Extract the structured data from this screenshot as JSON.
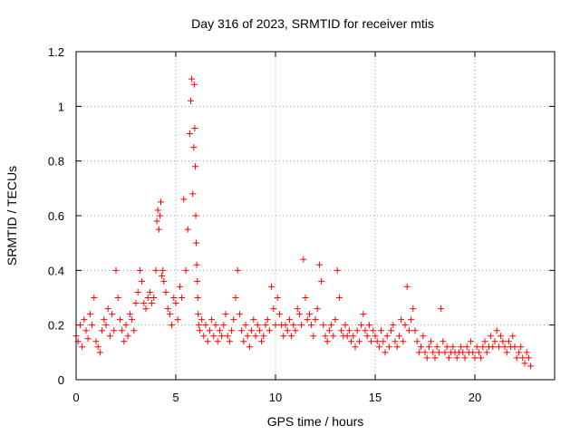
{
  "chart_data": {
    "type": "scatter",
    "title": "Day 316 of 2023, SRMTID for receiver mtis",
    "xlabel": "GPS time / hours",
    "ylabel": "SRMTID / TECUs",
    "xlim": [
      0,
      24
    ],
    "ylim": [
      0,
      1.2
    ],
    "xticks": [
      0,
      5,
      10,
      15,
      20
    ],
    "xtick_labels": [
      "0",
      "5",
      "10",
      "15",
      "20"
    ],
    "yticks": [
      0,
      0.2,
      0.4,
      0.6,
      0.8,
      1.0,
      1.2
    ],
    "ytick_labels": [
      "0",
      "0.2",
      "0.4",
      "0.6",
      "0.8",
      "1",
      "1.2"
    ],
    "grid": true,
    "marker": "+",
    "series_color": "#ff0000",
    "series": [
      {
        "name": "SRMTID",
        "x": [
          0.0,
          0.1,
          0.2,
          0.3,
          0.4,
          0.5,
          0.6,
          0.7,
          0.8,
          0.9,
          1.0,
          1.1,
          1.2,
          1.3,
          1.4,
          1.5,
          1.6,
          1.7,
          1.8,
          1.9,
          2.0,
          2.1,
          2.2,
          2.3,
          2.4,
          2.5,
          2.6,
          2.7,
          2.8,
          2.9,
          3.0,
          3.1,
          3.2,
          3.3,
          3.4,
          3.5,
          3.6,
          3.7,
          3.8,
          3.9,
          4.0,
          4.05,
          4.1,
          4.15,
          4.2,
          4.25,
          4.3,
          4.35,
          4.4,
          4.5,
          4.6,
          4.7,
          4.8,
          4.9,
          5.0,
          5.1,
          5.2,
          5.3,
          5.4,
          5.5,
          5.6,
          5.7,
          5.75,
          5.8,
          5.85,
          5.9,
          5.92,
          5.95,
          5.98,
          6.0,
          6.02,
          6.05,
          6.08,
          6.1,
          6.12,
          6.15,
          6.2,
          6.3,
          6.4,
          6.5,
          6.6,
          6.7,
          6.8,
          6.9,
          7.0,
          7.1,
          7.2,
          7.3,
          7.4,
          7.5,
          7.6,
          7.7,
          7.8,
          7.9,
          8.0,
          8.1,
          8.2,
          8.3,
          8.4,
          8.5,
          8.6,
          8.7,
          8.8,
          8.9,
          9.0,
          9.1,
          9.2,
          9.3,
          9.4,
          9.5,
          9.6,
          9.7,
          9.8,
          9.9,
          10.0,
          10.1,
          10.2,
          10.3,
          10.4,
          10.5,
          10.6,
          10.7,
          10.8,
          10.9,
          11.0,
          11.1,
          11.2,
          11.3,
          11.4,
          11.5,
          11.6,
          11.7,
          11.8,
          11.9,
          12.0,
          12.1,
          12.2,
          12.3,
          12.4,
          12.5,
          12.6,
          12.7,
          12.8,
          12.9,
          13.0,
          13.1,
          13.2,
          13.3,
          13.4,
          13.5,
          13.6,
          13.7,
          13.8,
          13.9,
          14.0,
          14.1,
          14.2,
          14.3,
          14.4,
          14.5,
          14.6,
          14.7,
          14.8,
          14.9,
          15.0,
          15.1,
          15.2,
          15.3,
          15.4,
          15.5,
          15.6,
          15.7,
          15.8,
          15.9,
          16.0,
          16.1,
          16.2,
          16.3,
          16.4,
          16.5,
          16.6,
          16.7,
          16.8,
          16.9,
          17.0,
          17.1,
          17.2,
          17.3,
          17.4,
          17.5,
          17.6,
          17.7,
          17.8,
          17.9,
          18.0,
          18.1,
          18.2,
          18.3,
          18.4,
          18.5,
          18.6,
          18.7,
          18.8,
          18.9,
          19.0,
          19.1,
          19.2,
          19.3,
          19.4,
          19.5,
          19.6,
          19.7,
          19.8,
          19.9,
          20.0,
          20.1,
          20.2,
          20.3,
          20.4,
          20.5,
          20.6,
          20.7,
          20.8,
          20.9,
          21.0,
          21.1,
          21.2,
          21.3,
          21.4,
          21.5,
          21.6,
          21.7,
          21.8,
          21.9,
          22.0,
          22.1,
          22.2,
          22.3,
          22.4,
          22.5,
          22.6,
          22.7,
          22.8
        ],
        "y": [
          0.16,
          0.14,
          0.2,
          0.12,
          0.22,
          0.18,
          0.15,
          0.24,
          0.2,
          0.3,
          0.14,
          0.12,
          0.1,
          0.18,
          0.22,
          0.2,
          0.26,
          0.16,
          0.24,
          0.18,
          0.4,
          0.3,
          0.22,
          0.18,
          0.14,
          0.2,
          0.16,
          0.24,
          0.22,
          0.18,
          0.28,
          0.32,
          0.4,
          0.36,
          0.28,
          0.26,
          0.3,
          0.32,
          0.28,
          0.3,
          0.4,
          0.58,
          0.62,
          0.55,
          0.6,
          0.65,
          0.38,
          0.4,
          0.36,
          0.32,
          0.26,
          0.24,
          0.2,
          0.3,
          0.28,
          0.22,
          0.34,
          0.3,
          0.66,
          0.4,
          0.55,
          0.9,
          1.02,
          1.1,
          0.68,
          0.85,
          1.08,
          0.92,
          0.78,
          0.6,
          0.5,
          0.42,
          0.36,
          0.3,
          0.24,
          0.2,
          0.18,
          0.22,
          0.16,
          0.2,
          0.14,
          0.18,
          0.22,
          0.16,
          0.2,
          0.14,
          0.18,
          0.16,
          0.2,
          0.24,
          0.16,
          0.14,
          0.18,
          0.22,
          0.3,
          0.4,
          0.24,
          0.18,
          0.14,
          0.2,
          0.16,
          0.12,
          0.18,
          0.22,
          0.16,
          0.2,
          0.18,
          0.14,
          0.16,
          0.2,
          0.22,
          0.18,
          0.34,
          0.26,
          0.2,
          0.3,
          0.24,
          0.2,
          0.16,
          0.2,
          0.18,
          0.22,
          0.16,
          0.2,
          0.18,
          0.26,
          0.24,
          0.2,
          0.44,
          0.3,
          0.22,
          0.24,
          0.2,
          0.16,
          0.22,
          0.26,
          0.42,
          0.36,
          0.2,
          0.16,
          0.14,
          0.18,
          0.2,
          0.16,
          0.22,
          0.4,
          0.3,
          0.18,
          0.16,
          0.2,
          0.16,
          0.18,
          0.14,
          0.16,
          0.12,
          0.18,
          0.14,
          0.2,
          0.24,
          0.18,
          0.16,
          0.2,
          0.14,
          0.18,
          0.16,
          0.14,
          0.12,
          0.18,
          0.14,
          0.1,
          0.16,
          0.12,
          0.18,
          0.2,
          0.14,
          0.12,
          0.16,
          0.22,
          0.14,
          0.2,
          0.34,
          0.18,
          0.22,
          0.26,
          0.18,
          0.14,
          0.1,
          0.12,
          0.16,
          0.1,
          0.08,
          0.12,
          0.14,
          0.1,
          0.08,
          0.12,
          0.1,
          0.26,
          0.14,
          0.1,
          0.12,
          0.08,
          0.1,
          0.12,
          0.1,
          0.08,
          0.1,
          0.12,
          0.1,
          0.08,
          0.12,
          0.1,
          0.14,
          0.1,
          0.08,
          0.12,
          0.1,
          0.08,
          0.12,
          0.14,
          0.1,
          0.12,
          0.16,
          0.12,
          0.14,
          0.18,
          0.12,
          0.16,
          0.14,
          0.12,
          0.1,
          0.14,
          0.12,
          0.16,
          0.12,
          0.08,
          0.1,
          0.12,
          0.08,
          0.06,
          0.1,
          0.08,
          0.05
        ]
      }
    ]
  }
}
